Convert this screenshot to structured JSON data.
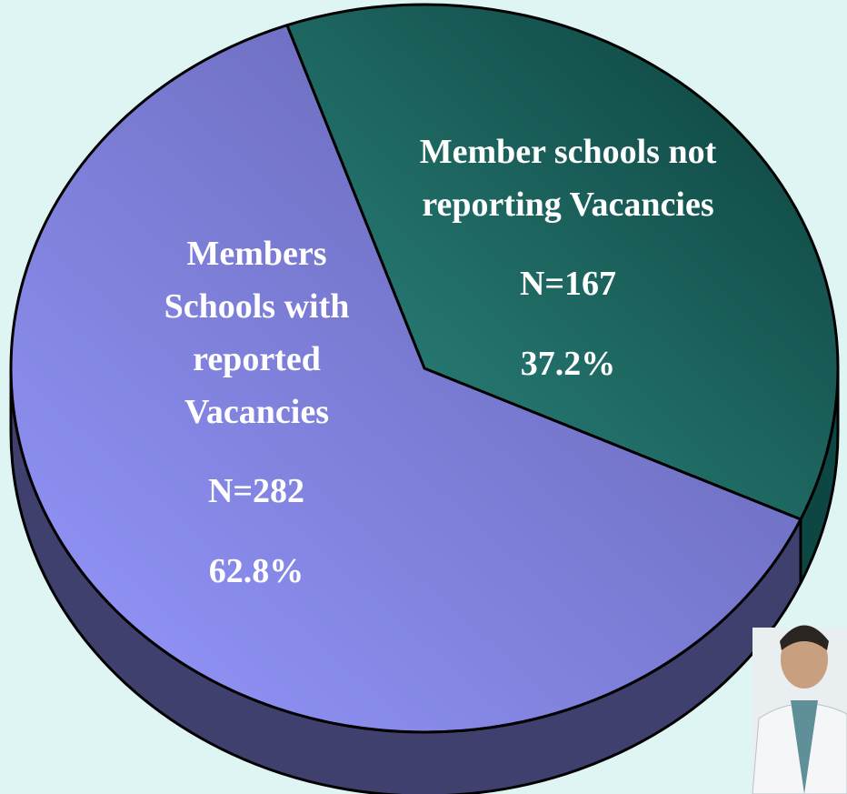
{
  "chart_data": {
    "type": "pie",
    "categories": [
      "Member schools not reporting Vacancies",
      "Members Schools with reported Vacancies"
    ],
    "count_labels": [
      "N=167",
      "N=282"
    ],
    "values": [
      37.2,
      62.8
    ],
    "value_labels": [
      "37.2%",
      "62.8%"
    ],
    "colors": [
      "#1c6b66",
      "#8486e6"
    ]
  }
}
